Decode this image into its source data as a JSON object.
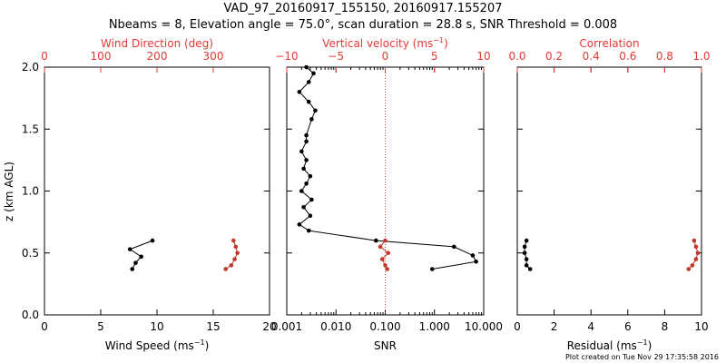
{
  "title_line1": "VAD_97_20160917_155150, 20160917.155207",
  "title_line2": "Nbeams = 8, Elevation angle = 75.0°, scan duration = 28.8 s, SNR Threshold = 0.008",
  "footnote": "Plot created on Tue Nov 29 17:35:58 2016",
  "colors": {
    "axis": "#000000",
    "accent": "#e53935",
    "red_marker": "#c0392b",
    "black_marker": "#000000"
  },
  "chart_data": [
    {
      "type": "scatter",
      "bottom_axis": {
        "label": "Wind Speed (ms",
        "label_sup": "−1",
        "label_end": ")",
        "range": [
          0,
          20
        ],
        "ticks": [
          "0",
          "5",
          "10",
          "15",
          "20"
        ],
        "tick_values": [
          0,
          5,
          10,
          15,
          20
        ]
      },
      "top_axis": {
        "label": "Wind Direction (deg)",
        "range": [
          0,
          400
        ],
        "ticks": [
          "0",
          "100",
          "200",
          "300"
        ],
        "tick_values": [
          0,
          100,
          200,
          300
        ],
        "color": "red"
      },
      "y_axis": {
        "label": "z (km AGL)",
        "range": [
          0,
          2.0
        ],
        "ticks": [
          "0.0",
          "0.5",
          "1.0",
          "1.5",
          "2.0"
        ],
        "tick_values": [
          0,
          0.5,
          1.0,
          1.5,
          2.0
        ]
      },
      "series": [
        {
          "axis": "bottom",
          "marker": "black",
          "points": [
            [
              9.6,
              0.6
            ],
            [
              7.6,
              0.53
            ],
            [
              8.6,
              0.47
            ],
            [
              8.1,
              0.42
            ],
            [
              7.8,
              0.37
            ]
          ]
        },
        {
          "axis": "top",
          "marker": "red",
          "points": [
            [
              336,
              0.6
            ],
            [
              340,
              0.55
            ],
            [
              343,
              0.5
            ],
            [
              338,
              0.45
            ],
            [
              332,
              0.4
            ],
            [
              322,
              0.37
            ]
          ]
        }
      ]
    },
    {
      "type": "line",
      "bottom_axis": {
        "label": "SNR",
        "scale": "log",
        "range": [
          0.001,
          10
        ],
        "ticks": [
          "0.001",
          "0.010",
          "0.100",
          "1.000",
          "10.000"
        ],
        "tick_values": [
          0.001,
          0.01,
          0.1,
          1,
          10
        ]
      },
      "top_axis": {
        "label": "Vertical velocity (ms",
        "label_sup": "−1",
        "label_end": ")",
        "range": [
          -10,
          10
        ],
        "ticks": [
          "−10",
          "−5",
          "0",
          "5",
          "10"
        ],
        "tick_values": [
          -10,
          -5,
          0,
          5,
          10
        ],
        "color": "red"
      },
      "y_axis": {
        "range": [
          0,
          2.0
        ]
      },
      "reference_line": {
        "axis": "top",
        "value": 0,
        "style": "dotted",
        "color": "red"
      },
      "series": [
        {
          "axis": "bottom",
          "marker": "black",
          "points": [
            [
              0.0025,
              2.0
            ],
            [
              0.0035,
              1.95
            ],
            [
              0.0028,
              1.88
            ],
            [
              0.0018,
              1.8
            ],
            [
              0.0028,
              1.72
            ],
            [
              0.0038,
              1.65
            ],
            [
              0.0032,
              1.58
            ],
            [
              0.0025,
              1.45
            ],
            [
              0.0025,
              1.4
            ],
            [
              0.002,
              1.32
            ],
            [
              0.0025,
              1.25
            ],
            [
              0.0022,
              1.18
            ],
            [
              0.003,
              1.12
            ],
            [
              0.0025,
              1.06
            ],
            [
              0.002,
              1.0
            ],
            [
              0.0032,
              0.93
            ],
            [
              0.0022,
              0.87
            ],
            [
              0.003,
              0.8
            ],
            [
              0.0018,
              0.73
            ],
            [
              0.0028,
              0.68
            ],
            [
              0.065,
              0.6
            ],
            [
              2.5,
              0.55
            ],
            [
              6.0,
              0.48
            ],
            [
              7.0,
              0.43
            ],
            [
              0.9,
              0.37
            ]
          ]
        },
        {
          "axis": "top",
          "marker": "red",
          "points": [
            [
              0,
              0.6
            ],
            [
              -0.5,
              0.55
            ],
            [
              0.3,
              0.5
            ],
            [
              -0.3,
              0.45
            ],
            [
              0.0,
              0.4
            ],
            [
              0.2,
              0.37
            ]
          ]
        }
      ]
    },
    {
      "type": "scatter",
      "bottom_axis": {
        "label": "Residual (ms",
        "label_sup": "−1",
        "label_end": ")",
        "range": [
          0,
          10
        ],
        "ticks": [
          "0",
          "2",
          "4",
          "6",
          "8",
          "10"
        ],
        "tick_values": [
          0,
          2,
          4,
          6,
          8,
          10
        ]
      },
      "top_axis": {
        "label": "Correlation",
        "range": [
          0,
          1.0
        ],
        "ticks": [
          "0.0",
          "0.2",
          "0.4",
          "0.6",
          "0.8",
          "1.0"
        ],
        "tick_values": [
          0,
          0.2,
          0.4,
          0.6,
          0.8,
          1.0
        ],
        "color": "red"
      },
      "y_axis": {
        "range": [
          0,
          2.0
        ]
      },
      "series": [
        {
          "axis": "bottom",
          "marker": "black",
          "points": [
            [
              0.5,
              0.6
            ],
            [
              0.4,
              0.55
            ],
            [
              0.4,
              0.5
            ],
            [
              0.5,
              0.45
            ],
            [
              0.5,
              0.4
            ],
            [
              0.7,
              0.37
            ]
          ]
        },
        {
          "axis": "top",
          "marker": "red",
          "points": [
            [
              0.96,
              0.6
            ],
            [
              0.97,
              0.55
            ],
            [
              0.98,
              0.5
            ],
            [
              0.97,
              0.45
            ],
            [
              0.95,
              0.4
            ],
            [
              0.93,
              0.37
            ]
          ]
        }
      ]
    }
  ]
}
